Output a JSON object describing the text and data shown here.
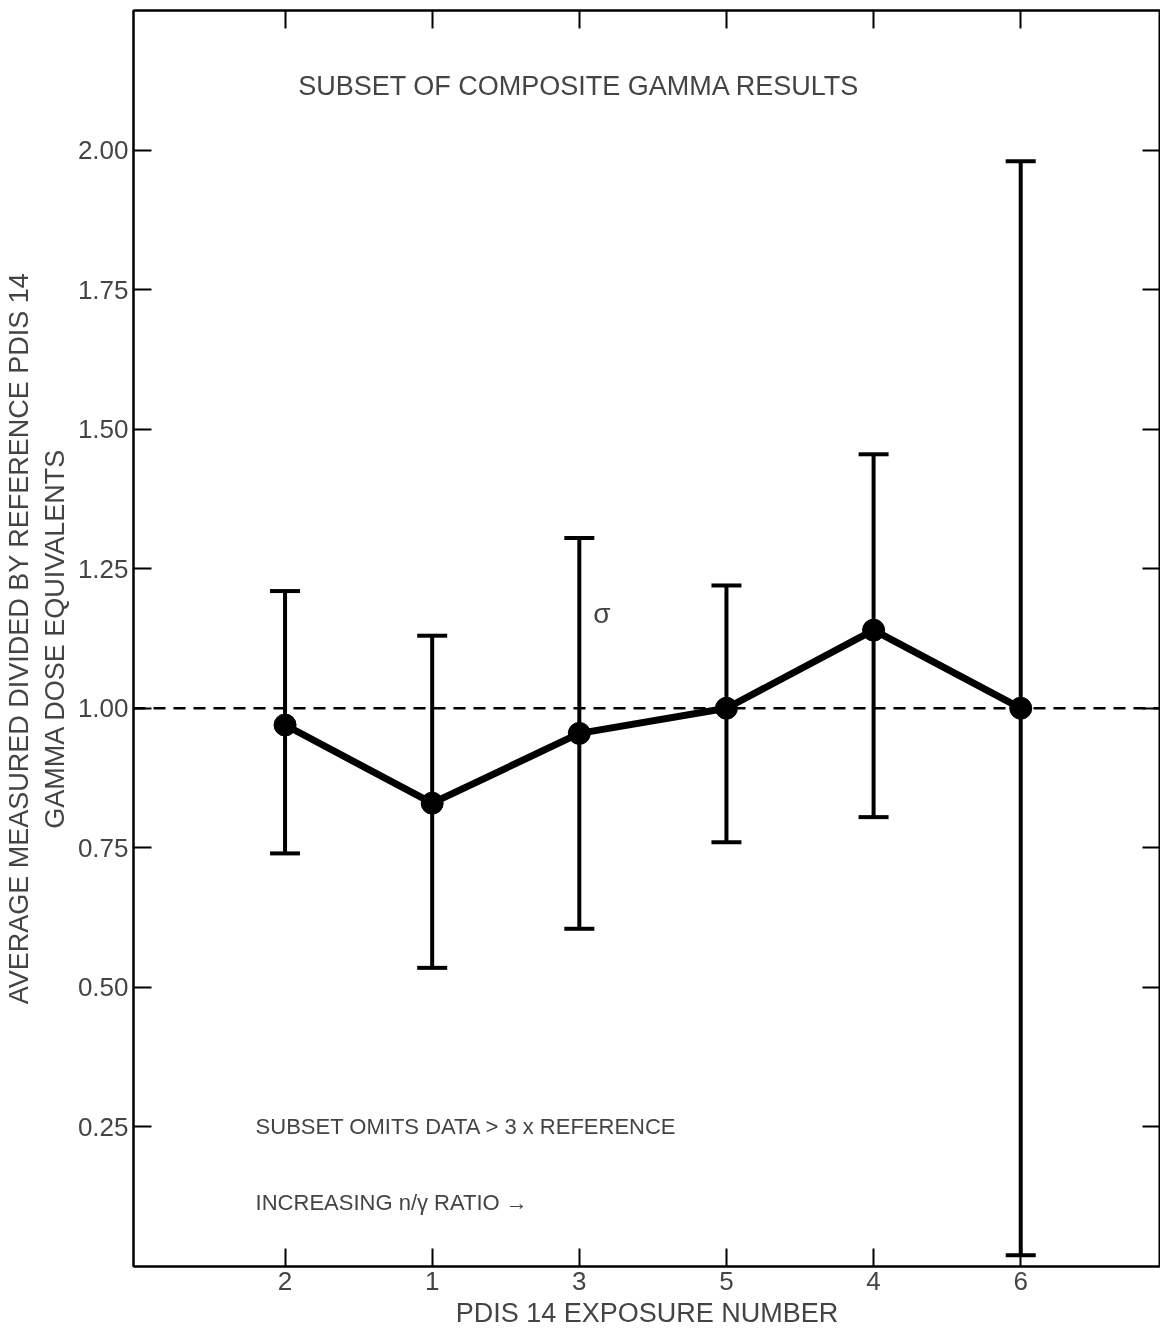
{
  "chart_data": {
    "type": "line",
    "title": "SUBSET OF COMPOSITE GAMMA RESULTS",
    "xlabel": "PDIS 14 EXPOSURE NUMBER",
    "ylabel": "AVERAGE MEASURED DIVIDED BY REFERENCE PDIS 14\nGAMMA DOSE EQUIVALENTS",
    "categories": [
      "2",
      "1",
      "3",
      "5",
      "4",
      "6"
    ],
    "series": [
      {
        "color": "#000000",
        "values": [
          0.97,
          0.83,
          0.955,
          1.0,
          1.14,
          1.0
        ],
        "errors": [
          [
            0.74,
            1.21
          ],
          [
            0.535,
            1.13
          ],
          [
            0.605,
            1.305
          ],
          [
            0.76,
            1.22
          ],
          [
            0.805,
            1.455
          ],
          [
            0.02,
            1.98
          ]
        ]
      }
    ],
    "ylim": [
      0,
      2.25
    ],
    "yticks": [
      {
        "value": 0.25,
        "label": "0.25"
      },
      {
        "value": 0.5,
        "label": "0.50"
      },
      {
        "value": 0.75,
        "label": "0.75"
      },
      {
        "value": 1,
        "label": "1.00"
      },
      {
        "value": 1.25,
        "label": "1.25"
      },
      {
        "value": 1.5,
        "label": "1.50"
      },
      {
        "value": 1.75,
        "label": "1.75"
      },
      {
        "value": 2,
        "label": "2.00"
      }
    ],
    "ref_lines": [
      {
        "axis": "y",
        "value": 1,
        "color": "#000000",
        "line_style": "dashed"
      }
    ],
    "annotations": [
      {
        "text": "σ",
        "x": "3",
        "y": 1.17
      },
      "SUBSET OMITS DATA > 3 x REFERENCE",
      "INCREASING n/γ RATIO →"
    ],
    "grid": false,
    "marker": "circle",
    "line_style": "solid"
  }
}
